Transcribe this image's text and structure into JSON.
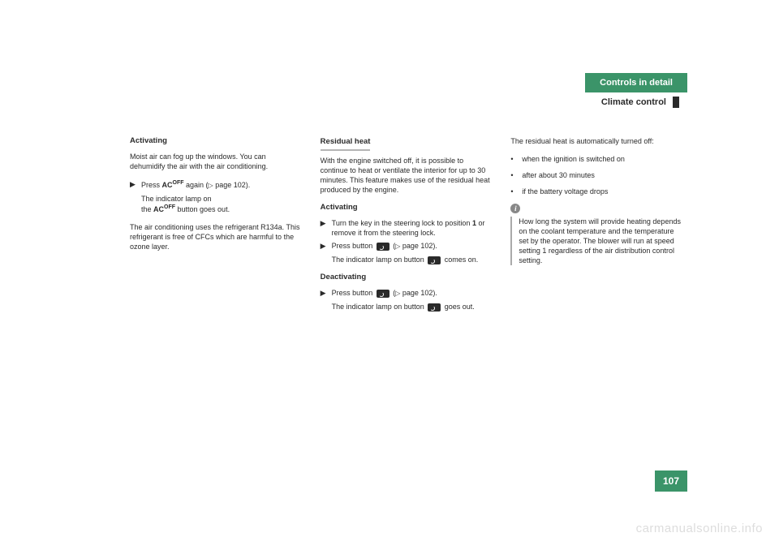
{
  "header": {
    "tab": "Controls in detail",
    "subtitle": "Climate control"
  },
  "col1": {
    "head1": "Activating",
    "p1": "Moist air can fog up the windows. You can dehumidify the air with the air conditioning.",
    "item1": "Press ",
    "ac": "AC",
    "off": "OFF",
    "item1b": " again (",
    "tri": "▷",
    "pageref": " page 102).",
    "sub1a": "The indicator lamp on",
    "sub1b": "the ",
    "sub1c": " button goes out.",
    "p2": "The air conditioning uses the refrigerant R134a. This refrigerant is free of CFCs which are harmful to the ozone layer."
  },
  "col2": {
    "head1": "Residual heat",
    "p1": "With the engine switched off, it is possible to continue to heat or ventilate the interior for up to 30 minutes. This feature makes use of the residual heat produced by the engine.",
    "head2": "Activating",
    "item1a": "Turn the key in the steering lock to position ",
    "pos1": "1",
    "item1b": " or remove it from the steering lock.",
    "item2a": "Press button ",
    "item2b": " (",
    "pageref": " page 102).",
    "sub2a": "The indicator lamp on button ",
    "sub2b": " comes on.",
    "head3": "Deactivating",
    "item3a": "Press button ",
    "item3b": " (",
    "sub3a": "The indicator lamp on button ",
    "sub3b": " goes out."
  },
  "col3": {
    "p1": "The residual heat is automatically turned off:",
    "b1": "when the ignition is switched on",
    "b2": "after about 30 minutes",
    "b3": "if the battery voltage drops",
    "info_i": "i",
    "info": "How long the system will provide heating depends on the coolant temperature and the temperature set by the operator. The blower will run at speed setting 1 regardless of the air distribution control setting."
  },
  "page_number": "107",
  "watermark": "carmanualsonline.info"
}
